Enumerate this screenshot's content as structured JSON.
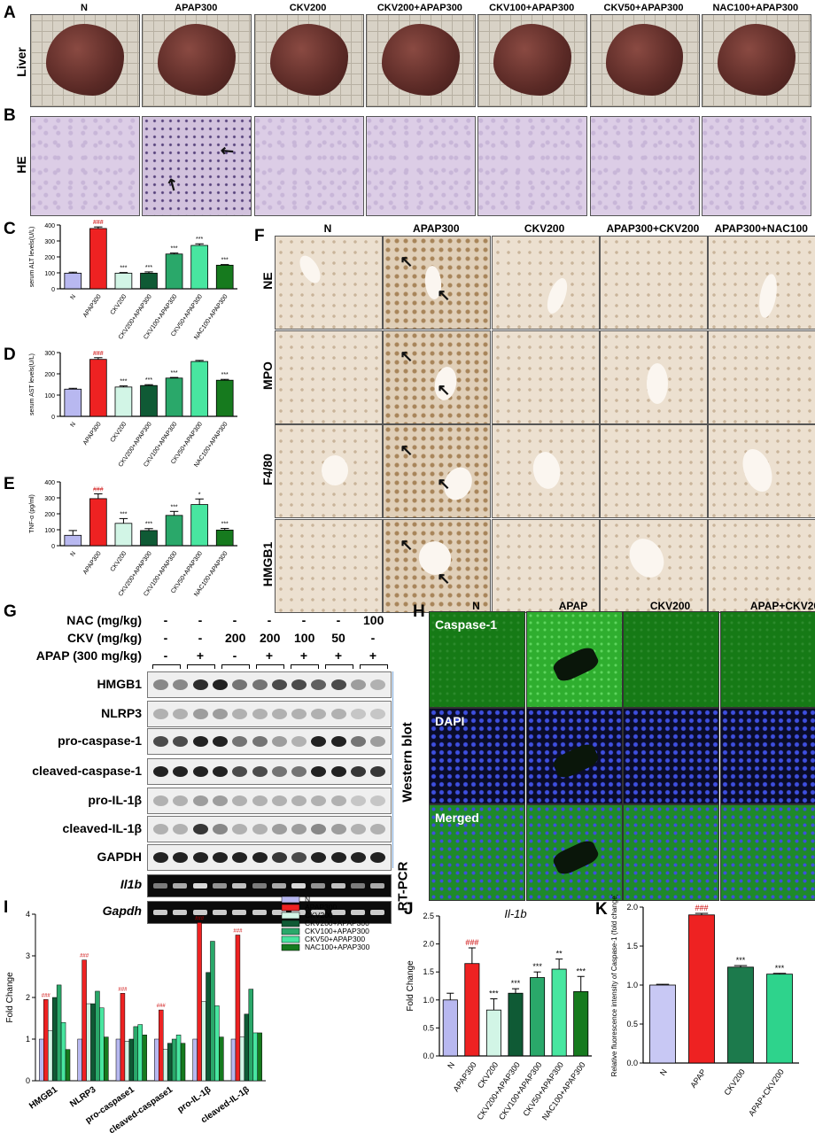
{
  "panels": {
    "A": "A",
    "B": "B",
    "C": "C",
    "D": "D",
    "E": "E",
    "F": "F",
    "G": "G",
    "H": "H",
    "I": "I",
    "J": "J",
    "K": "K"
  },
  "top_groups": [
    "N",
    "APAP300",
    "CKV200",
    "CKV200+APAP300",
    "CKV100+APAP300",
    "CKV50+APAP300",
    "NAC100+APAP300"
  ],
  "row_labels": {
    "liver": "Liver",
    "he": "HE"
  },
  "F": {
    "columns": [
      "N",
      "APAP300",
      "CKV200",
      "APAP300+CKV200",
      "APAP300+NAC100"
    ],
    "rows": [
      "NE",
      "MPO",
      "F4/80",
      "HMGB1"
    ]
  },
  "G": {
    "treat_rows": [
      {
        "label": "NAC (mg/kg)",
        "values": [
          "-",
          "-",
          "-",
          "-",
          "-",
          "-",
          "100"
        ]
      },
      {
        "label": "CKV (mg/kg)",
        "values": [
          "-",
          "-",
          "200",
          "200",
          "100",
          "50",
          "-"
        ]
      },
      {
        "label": "APAP (300 mg/kg)",
        "values": [
          "-",
          "+",
          "-",
          "+",
          "+",
          "+",
          "+"
        ]
      }
    ],
    "blots": [
      "HMGB1",
      "NLRP3",
      "pro-caspase-1",
      "cleaved-caspase-1",
      "pro-IL-1β",
      "cleaved-IL-1β",
      "GAPDH"
    ],
    "pcr": [
      "Il1b",
      "Gapdh"
    ],
    "side_wb": "Western blot",
    "side_pcr": "RT-PCR"
  },
  "H": {
    "columns": [
      "N",
      "APAP",
      "CKV200",
      "APAP+CKV20"
    ],
    "col_extra": "0",
    "rows": [
      "Caspase-1",
      "DAPI",
      "Merged"
    ]
  },
  "chart_data": [
    {
      "panel": "C",
      "type": "bar",
      "ylabel": "serum ALT levels(U/L)",
      "ylim": [
        0,
        400
      ],
      "yticks": [
        0,
        100,
        200,
        300,
        400
      ],
      "categories": [
        "N",
        "APAP300",
        "CKV200",
        "CKV200+APAP300",
        "CKV100+APAP300",
        "CKV50+APAP300",
        "NAC100+APAP300"
      ],
      "values": [
        98,
        378,
        98,
        98,
        218,
        272,
        148
      ],
      "errors": [
        6,
        10,
        4,
        8,
        6,
        10,
        4
      ],
      "annotations": [
        "",
        "###",
        "***",
        "***",
        "***",
        "***",
        "***"
      ]
    },
    {
      "panel": "D",
      "type": "bar",
      "ylabel": "serum AST levels(U/L)",
      "ylim": [
        0,
        300
      ],
      "yticks": [
        0,
        100,
        200,
        300
      ],
      "categories": [
        "N",
        "APAP300",
        "CKV200",
        "CKV200+APAP300",
        "CKV100+APAP300",
        "CKV50+APAP300",
        "NAC100+APAP300"
      ],
      "values": [
        128,
        268,
        138,
        145,
        180,
        258,
        170
      ],
      "errors": [
        4,
        8,
        5,
        4,
        3,
        5,
        4
      ],
      "annotations": [
        "",
        "###",
        "***",
        "***",
        "***",
        "",
        "***"
      ]
    },
    {
      "panel": "E",
      "type": "bar",
      "ylabel": "TNF-α (pg/ml)",
      "ylim": [
        0,
        400
      ],
      "yticks": [
        0,
        100,
        200,
        300,
        400
      ],
      "categories": [
        "N",
        "APAP300",
        "CKV200",
        "CKV200+APAP300",
        "CKV100+APAP300",
        "CKV50+APAP300",
        "NAC100+APAP300"
      ],
      "values": [
        65,
        295,
        140,
        95,
        190,
        258,
        98
      ],
      "errors": [
        30,
        30,
        30,
        12,
        25,
        35,
        10
      ],
      "annotations": [
        "",
        "###",
        "***",
        "***",
        "***",
        "*",
        "***"
      ]
    },
    {
      "panel": "I",
      "type": "bar",
      "ylabel": "Fold Change",
      "ylim": [
        0,
        4
      ],
      "yticks": [
        0,
        1,
        2,
        3,
        4
      ],
      "categories": [
        "HMGB1",
        "NLRP3",
        "pro-caspase1",
        "cleaved-caspase1",
        "pro-IL-1β",
        "cleaved-IL-1β"
      ],
      "series": [
        {
          "name": "N",
          "values": [
            1,
            1,
            1,
            1,
            1,
            1
          ]
        },
        {
          "name": "APAP300",
          "values": [
            1.95,
            2.9,
            2.1,
            1.7,
            3.8,
            3.5
          ]
        },
        {
          "name": "CKV200",
          "values": [
            1.2,
            1.85,
            0.95,
            0.75,
            1.9,
            1.05
          ]
        },
        {
          "name": "CKV200+APAP300",
          "values": [
            2.0,
            1.85,
            1.0,
            0.9,
            2.6,
            1.6
          ]
        },
        {
          "name": "CKV100+APAP300",
          "values": [
            2.3,
            2.15,
            1.3,
            1.0,
            3.35,
            2.2
          ]
        },
        {
          "name": "CKV50+APAP300",
          "values": [
            1.4,
            1.75,
            1.35,
            1.1,
            1.8,
            1.15
          ]
        },
        {
          "name": "NAC100+APAP300",
          "values": [
            0.75,
            1.05,
            1.1,
            0.9,
            1.05,
            1.15
          ]
        }
      ],
      "annotations": {
        "APAP300": "###"
      }
    },
    {
      "panel": "J",
      "type": "bar",
      "title": "Il-1b",
      "ylabel": "Fold Change",
      "ylim": [
        0,
        2.5
      ],
      "yticks": [
        0.0,
        0.5,
        1.0,
        1.5,
        2.0,
        2.5
      ],
      "categories": [
        "N",
        "APAP300",
        "CKV200",
        "CKV200+APAP300",
        "CKV100+APAP300",
        "CKV50+APAP300",
        "NAC100+APAP300"
      ],
      "values": [
        1.0,
        1.65,
        0.82,
        1.12,
        1.4,
        1.55,
        1.15
      ],
      "errors": [
        0.12,
        0.28,
        0.2,
        0.08,
        0.1,
        0.18,
        0.27
      ],
      "annotations": [
        "",
        "###",
        "***",
        "***",
        "***",
        "**",
        "***"
      ]
    },
    {
      "panel": "K",
      "type": "bar",
      "ylabel": "Relative fluorescence intensity of Caspase-1 (fold change)",
      "ylim": [
        0,
        2.0
      ],
      "yticks": [
        0.0,
        0.5,
        1.0,
        1.5,
        2.0
      ],
      "categories": [
        "N",
        "APAP",
        "CKV200",
        "APAP+CKV200"
      ],
      "values": [
        1.0,
        1.9,
        1.23,
        1.14
      ],
      "errors": [
        0.01,
        0.02,
        0.02,
        0.01
      ],
      "annotations": [
        "",
        "###",
        "***",
        "***"
      ]
    }
  ],
  "colors": {
    "groups": [
      "#b8b8f0",
      "#ee2222",
      "#d2f5e6",
      "#0f5a35",
      "#2aa86a",
      "#48e6a0",
      "#167a1e"
    ],
    "K": [
      "#c8c8f4",
      "#ee2222",
      "#1c7a4c",
      "#2ed38c"
    ]
  }
}
